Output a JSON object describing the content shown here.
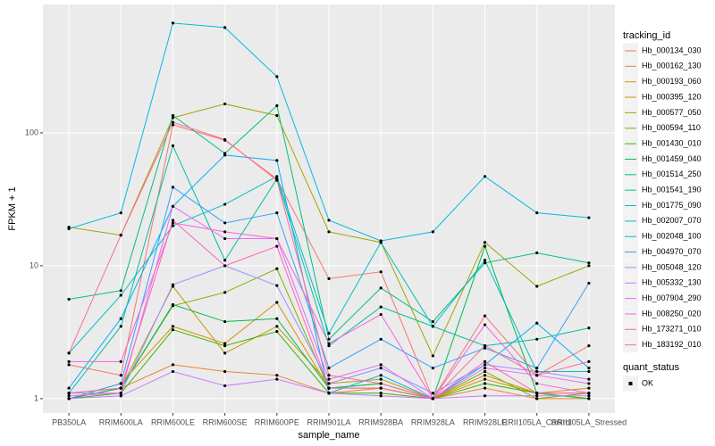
{
  "chart_data": {
    "type": "line",
    "log_scale": true,
    "grid": true,
    "legend_position": "right",
    "x_label": "sample_name",
    "y_label": "FPKM + 1",
    "legend_title": "tracking_id",
    "point_color": "#000000",
    "shape_legend": {
      "title": "quant_status",
      "labels": [
        "OK"
      ]
    },
    "categories": [
      "PB350LA",
      "RRIM600LA",
      "RRIM600LE",
      "RRIM600SE",
      "RRIM600PE",
      "RRIM901LA",
      "RRIM928BA",
      "RRIM928LA",
      "RRIM928LE",
      "RRII105LA_Control",
      "RRII105LA_Stressed"
    ],
    "ylim": [
      0.78,
      925
    ],
    "yticks": [
      1,
      10,
      100
    ],
    "series": [
      {
        "name": "Hb_000134_030",
        "color": "#F8766D",
        "values": [
          1.8,
          1.5,
          115,
          88,
          45,
          8,
          9,
          1,
          4.2,
          1.5,
          2.5
        ]
      },
      {
        "name": "Hb_000162_130",
        "color": "#EA8331",
        "values": [
          1,
          1.2,
          1.8,
          1.6,
          1.5,
          1.1,
          1.2,
          1,
          1.2,
          1,
          1
        ]
      },
      {
        "name": "Hb_000193_060",
        "color": "#D89000",
        "values": [
          1,
          1.3,
          3.5,
          2.6,
          5.3,
          1.2,
          1.3,
          1,
          1.5,
          1.1,
          1.2
        ]
      },
      {
        "name": "Hb_000395_120",
        "color": "#C09B00",
        "values": [
          1,
          1.2,
          7,
          2.2,
          3.5,
          1.3,
          1.4,
          1,
          1.4,
          1.1,
          1.1
        ]
      },
      {
        "name": "Hb_000577_050",
        "color": "#A3A500",
        "values": [
          19.5,
          17,
          130,
          165,
          135,
          18,
          15,
          2.1,
          15,
          7,
          10
        ]
      },
      {
        "name": "Hb_000594_110",
        "color": "#7CAE00",
        "values": [
          1.1,
          1.2,
          5,
          6.3,
          9.5,
          1.2,
          1.2,
          1,
          1.6,
          1,
          1.1
        ]
      },
      {
        "name": "Hb_001430_010",
        "color": "#39B600",
        "values": [
          1,
          1.1,
          3.3,
          2.5,
          3.2,
          1.1,
          1.1,
          1,
          1.3,
          1.1,
          1
        ]
      },
      {
        "name": "Hb_001459_040",
        "color": "#00BB4E",
        "values": [
          1,
          1.2,
          5.1,
          3.8,
          4,
          1.2,
          1.3,
          1,
          14,
          1.1,
          1
        ]
      },
      {
        "name": "Hb_001514_250",
        "color": "#00BF7D",
        "values": [
          5.6,
          6.5,
          135,
          70,
          160,
          2.8,
          6.8,
          3.8,
          10.5,
          12.5,
          10.5
        ]
      },
      {
        "name": "Hb_001541_190",
        "color": "#00C1A3",
        "values": [
          1.1,
          3.5,
          80,
          11,
          45,
          2.5,
          4.9,
          3.5,
          2.5,
          2.8,
          3.4
        ]
      },
      {
        "name": "Hb_001775_090",
        "color": "#00BFC4",
        "values": [
          2.2,
          6,
          20,
          29,
          47,
          3.1,
          15,
          3.5,
          11,
          1.6,
          1.6
        ]
      },
      {
        "name": "Hb_002007_070",
        "color": "#00BAE0",
        "values": [
          19,
          25,
          670,
          620,
          265,
          22,
          15.4,
          18,
          47,
          25,
          23
        ]
      },
      {
        "name": "Hb_002048_100",
        "color": "#00B0F6",
        "values": [
          1.2,
          4,
          28,
          68,
          62,
          1.1,
          1.5,
          1,
          1.8,
          3.7,
          1.7
        ]
      },
      {
        "name": "Hb_004970_070",
        "color": "#35A2FF",
        "values": [
          1,
          1.3,
          39,
          21,
          25,
          1.7,
          2.8,
          1.7,
          2.4,
          1.7,
          7.4
        ]
      },
      {
        "name": "Hb_005048_120",
        "color": "#9590FF",
        "values": [
          1.1,
          1.1,
          7.2,
          10,
          7.1,
          1.3,
          1.7,
          1.1,
          1.8,
          1.6,
          1.4
        ]
      },
      {
        "name": "Hb_005332_130",
        "color": "#C77CFF",
        "values": [
          1,
          1.05,
          1.6,
          1.25,
          1.4,
          1.1,
          1.05,
          1,
          1.05,
          1.05,
          1.05
        ]
      },
      {
        "name": "Hb_007904_290",
        "color": "#E76BF3",
        "values": [
          1.05,
          1.1,
          28,
          16,
          16,
          1.4,
          1.8,
          1,
          1.7,
          1.5,
          1.3
        ]
      },
      {
        "name": "Hb_008250_020",
        "color": "#FA62DB",
        "values": [
          1.9,
          1.9,
          21,
          18,
          16,
          2.6,
          4.3,
          1,
          3.6,
          1.3,
          1.1
        ]
      },
      {
        "name": "Hb_173271_010",
        "color": "#FF62BC",
        "values": [
          1.1,
          1.2,
          22,
          10,
          14,
          1.2,
          1.2,
          1,
          1.9,
          1.1,
          1.1
        ]
      },
      {
        "name": "Hb_183192_010",
        "color": "#FF6C91",
        "values": [
          2.2,
          17,
          120,
          89,
          44,
          1.5,
          1.3,
          1,
          2.5,
          1.5,
          1.9
        ]
      }
    ]
  }
}
